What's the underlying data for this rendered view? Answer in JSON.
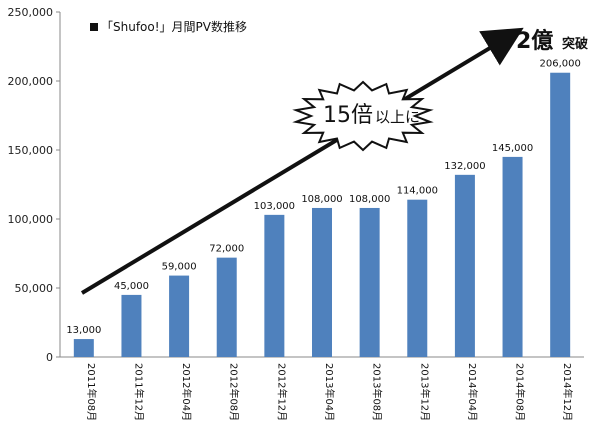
{
  "chart_data": {
    "type": "bar",
    "title": "「Shufoo!」月間PV数推移",
    "categories": [
      "2011年08月",
      "2011年12月",
      "2012年04月",
      "2012年08月",
      "2012年12月",
      "2013年04月",
      "2013年08月",
      "2013年12月",
      "2014年04月",
      "2014年08月",
      "2014年12月"
    ],
    "values": [
      13000,
      45000,
      59000,
      72000,
      103000,
      108000,
      108000,
      114000,
      132000,
      145000,
      206000
    ],
    "data_labels": [
      "13,000",
      "45,000",
      "59,000",
      "72,000",
      "103,000",
      "108,000",
      "108,000",
      "114,000",
      "132,000",
      "145,000",
      "206,000"
    ],
    "ylim": [
      0,
      250000
    ],
    "yticks": [
      0,
      50000,
      100000,
      150000,
      200000,
      250000
    ],
    "ytick_labels": [
      "0",
      "50,000",
      "100,000",
      "150,000",
      "200,000",
      "250,000"
    ],
    "xlabel": "",
    "ylabel": "",
    "grid": false,
    "legend_position": "top-left",
    "bar_color": "#4f81bd",
    "annotations": {
      "burst_number": "15倍",
      "burst_suffix": "以上に",
      "headline_number": "2億",
      "headline_suffix": "突破"
    }
  }
}
